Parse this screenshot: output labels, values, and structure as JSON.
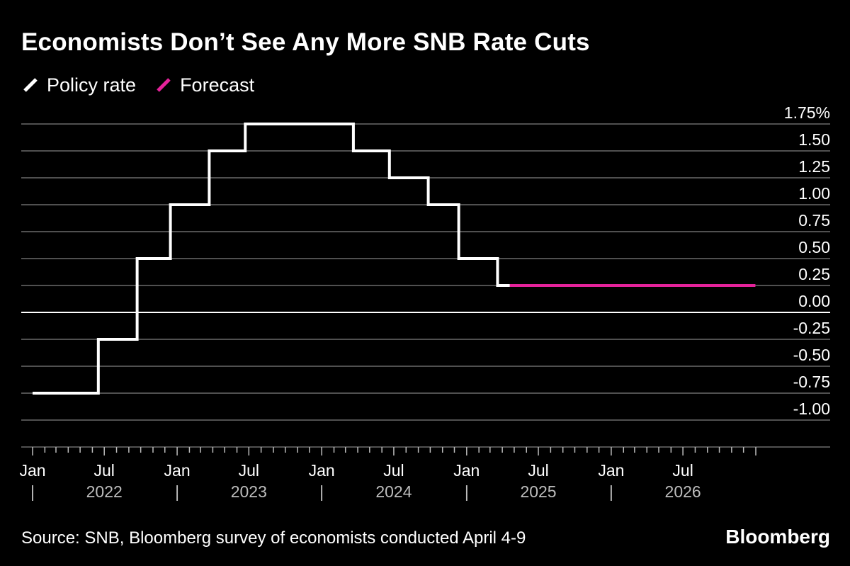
{
  "title": "Economists Don’t See Any More SNB Rate Cuts",
  "legend": [
    {
      "label": "Policy rate",
      "color": "#ffffff"
    },
    {
      "label": "Forecast",
      "color": "#e5229a"
    }
  ],
  "source": "Source: SNB, Bloomberg survey of economists conducted April 4-9",
  "brand": "Bloomberg",
  "chart_data": {
    "type": "line",
    "title": "Economists Don’t See Any More SNB Rate Cuts",
    "xlabel": "",
    "ylabel": "",
    "y_unit": "%",
    "ylim": [
      -1.25,
      1.75
    ],
    "xlim": [
      "2022-01-01",
      "2027-01-01"
    ],
    "y_ticks": [
      1.75,
      1.5,
      1.25,
      1.0,
      0.75,
      0.5,
      0.25,
      0.0,
      -0.25,
      -0.5,
      -0.75,
      -1.0
    ],
    "y_tick_labels": [
      "1.75%",
      "1.50",
      "1.25",
      "1.00",
      "0.75",
      "0.50",
      "0.25",
      "0.00",
      "-0.25",
      "-0.50",
      "-0.75",
      "-1.00"
    ],
    "x_ticks": [
      {
        "date": "2022-01-01",
        "label": "Jan"
      },
      {
        "date": "2022-07-01",
        "label": "Jul"
      },
      {
        "date": "2023-01-01",
        "label": "Jan"
      },
      {
        "date": "2023-07-01",
        "label": "Jul"
      },
      {
        "date": "2024-01-01",
        "label": "Jan"
      },
      {
        "date": "2024-07-01",
        "label": "Jul"
      },
      {
        "date": "2025-01-01",
        "label": "Jan"
      },
      {
        "date": "2025-07-01",
        "label": "Jul"
      },
      {
        "date": "2026-01-01",
        "label": "Jan"
      },
      {
        "date": "2026-07-01",
        "label": "Jul"
      }
    ],
    "year_labels": [
      "2022",
      "2023",
      "2024",
      "2025",
      "2026"
    ],
    "grid": true,
    "legend_position": "top-left",
    "series": [
      {
        "name": "Policy rate",
        "color": "#ffffff",
        "step": true,
        "points": [
          {
            "x": "2022-01-01",
            "y": -0.75
          },
          {
            "x": "2022-06-16",
            "y": -0.25
          },
          {
            "x": "2022-09-22",
            "y": 0.5
          },
          {
            "x": "2022-12-15",
            "y": 1.0
          },
          {
            "x": "2023-03-23",
            "y": 1.5
          },
          {
            "x": "2023-06-22",
            "y": 1.75
          },
          {
            "x": "2024-03-21",
            "y": 1.5
          },
          {
            "x": "2024-06-20",
            "y": 1.25
          },
          {
            "x": "2024-09-26",
            "y": 1.0
          },
          {
            "x": "2024-12-12",
            "y": 0.5
          },
          {
            "x": "2025-03-20",
            "y": 0.25
          },
          {
            "x": "2025-04-20",
            "y": 0.25
          }
        ]
      },
      {
        "name": "Forecast",
        "color": "#e5229a",
        "step": true,
        "points": [
          {
            "x": "2025-04-20",
            "y": 0.25
          },
          {
            "x": "2026-12-31",
            "y": 0.25
          }
        ]
      }
    ]
  }
}
